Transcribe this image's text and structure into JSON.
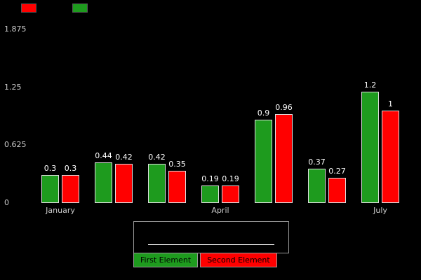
{
  "page": {
    "background": "#000000"
  },
  "top_swatches": [
    {
      "name": "red-swatch",
      "color": "#ff0000"
    },
    {
      "name": "green-swatch",
      "color": "#1e9b1e"
    }
  ],
  "chart_data": {
    "type": "bar",
    "categories": [
      "January",
      "",
      "",
      "April",
      "",
      "",
      "July"
    ],
    "series": [
      {
        "name": "First Element",
        "color": "#1e9b1e",
        "values": [
          0.3,
          0.44,
          0.42,
          0.19,
          0.9,
          0.37,
          1.2
        ]
      },
      {
        "name": "Second Element",
        "color": "#ff0000",
        "values": [
          0.3,
          0.42,
          0.35,
          0.19,
          0.96,
          0.27,
          1
        ]
      }
    ],
    "yticks": [
      0,
      0.625,
      1.25,
      1.875
    ],
    "ylim": [
      0,
      1.875
    ],
    "grid": false,
    "value_labels": true,
    "legend_position": "bottom",
    "title": "",
    "xlabel": "",
    "ylabel": ""
  }
}
